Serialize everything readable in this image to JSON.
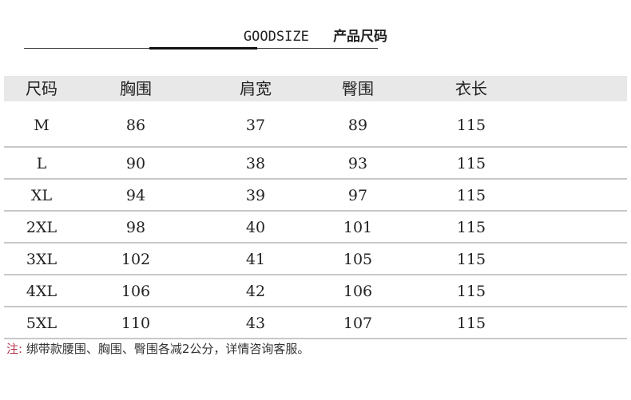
{
  "title": {
    "en": "GOODSIZE",
    "cn": "产品尺码"
  },
  "table": {
    "headers": [
      "尺码",
      "胸围",
      "肩宽",
      "臀围",
      "衣长"
    ],
    "rows": [
      [
        "M",
        "86",
        "37",
        "89",
        "115"
      ],
      [
        "L",
        "90",
        "38",
        "93",
        "115"
      ],
      [
        "XL",
        "94",
        "39",
        "97",
        "115"
      ],
      [
        "2XL",
        "98",
        "40",
        "101",
        "115"
      ],
      [
        "3XL",
        "102",
        "41",
        "105",
        "115"
      ],
      [
        "4XL",
        "106",
        "42",
        "106",
        "115"
      ],
      [
        "5XL",
        "110",
        "43",
        "107",
        "115"
      ]
    ]
  },
  "note": {
    "label": "注:",
    "text": "绑带款腰围、胸围、臀围各减2公分，详情咨询客服。"
  },
  "colors": {
    "header_bg": "#e8e8e8",
    "note_label": "#b5364a",
    "row_divider": "#c8c8c8"
  }
}
